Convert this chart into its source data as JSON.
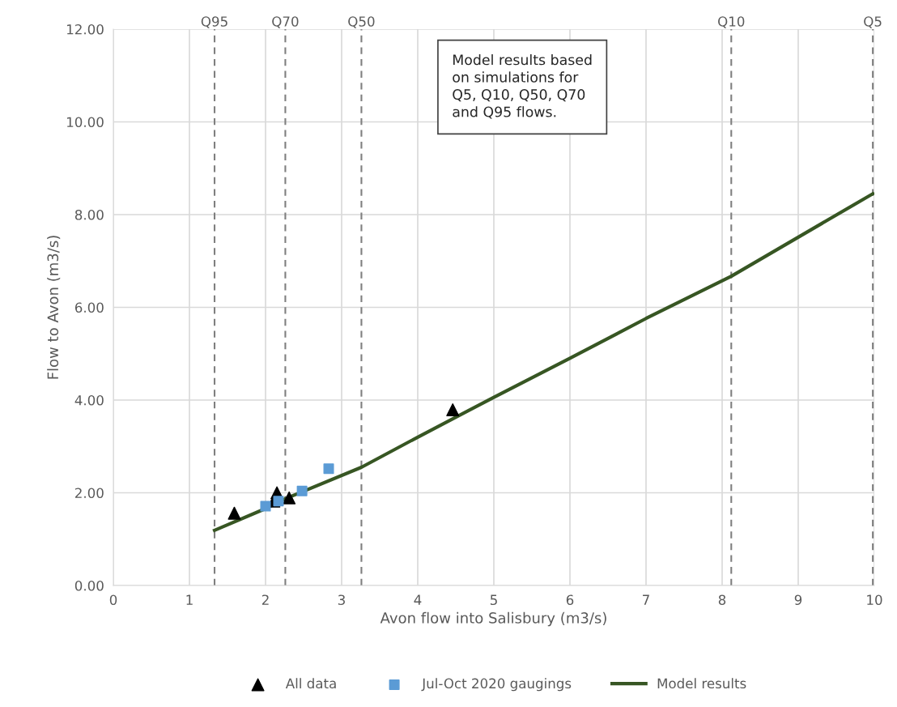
{
  "chart_data": {
    "type": "scatter",
    "xlabel": "Avon flow into Salisbury (m3/s)",
    "ylabel": "Flow to Avon (m3/s)",
    "xlim": [
      0,
      10
    ],
    "xticks": [
      0,
      1,
      2,
      3,
      4,
      5,
      6,
      7,
      8,
      9,
      10
    ],
    "ylim": [
      0,
      12
    ],
    "yticks": [
      {
        "value": 0,
        "label": "0.00"
      },
      {
        "value": 2,
        "label": "2.00"
      },
      {
        "value": 4,
        "label": "4.00"
      },
      {
        "value": 6,
        "label": "6.00"
      },
      {
        "value": 8,
        "label": "8.00"
      },
      {
        "value": 10,
        "label": "10.00"
      },
      {
        "value": 12,
        "label": "12.00"
      }
    ],
    "grid": true,
    "legend": "bottom",
    "series": [
      {
        "name": "All data",
        "marker": "triangle",
        "color": "#000000",
        "x": [
          1.59,
          2.15,
          2.11,
          2.31,
          4.46
        ],
        "values": [
          1.56,
          2.0,
          1.82,
          1.89,
          3.79
        ]
      },
      {
        "name": "Jul-Oct 2020 gaugings",
        "marker": "square",
        "color": "#5b9bd5",
        "x": [
          2.0,
          2.17,
          2.48,
          2.83
        ],
        "values": [
          1.71,
          1.82,
          2.04,
          2.52
        ]
      },
      {
        "name": "Model results",
        "type": "line",
        "marker": "none",
        "color": "#375623",
        "x": [
          1.33,
          2.0,
          2.26,
          3.26,
          4.0,
          5.0,
          6.0,
          7.0,
          8.12,
          9.98
        ],
        "values": [
          1.19,
          1.66,
          1.87,
          2.55,
          3.2,
          4.06,
          4.9,
          5.76,
          6.67,
          8.45
        ]
      }
    ],
    "ref_lines": [
      {
        "axis": "x",
        "value": 1.33,
        "label": "Q95",
        "color": "#7f7f7f",
        "line_style": "dashed"
      },
      {
        "axis": "x",
        "value": 2.26,
        "label": "Q70",
        "color": "#7f7f7f",
        "line_style": "dashed"
      },
      {
        "axis": "x",
        "value": 3.26,
        "label": "Q50",
        "color": "#7f7f7f",
        "line_style": "dashed"
      },
      {
        "axis": "x",
        "value": 8.12,
        "label": "Q10",
        "color": "#7f7f7f",
        "line_style": "dashed"
      },
      {
        "axis": "x",
        "value": 9.98,
        "label": "Q5",
        "color": "#7f7f7f",
        "line_style": "dashed"
      }
    ],
    "annotations": [
      "Model results based\non simulations for\nQ5, Q10, Q50, Q70\nand Q95 flows."
    ]
  }
}
